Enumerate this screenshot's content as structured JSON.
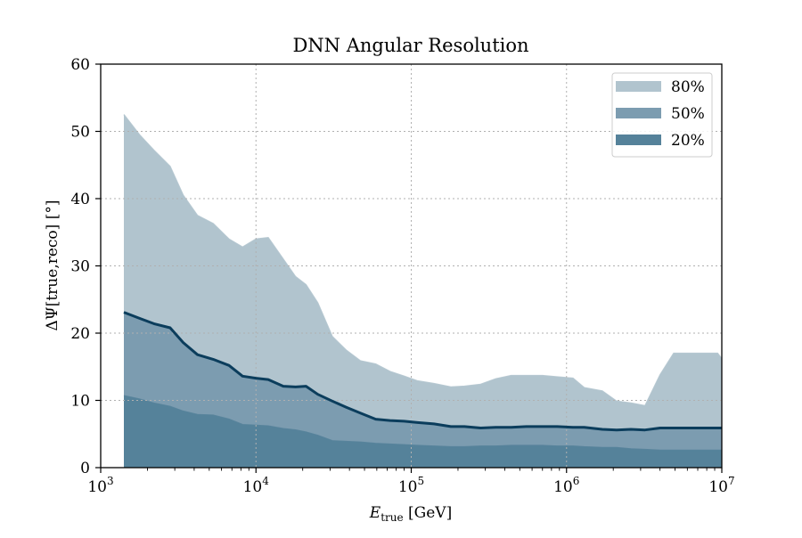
{
  "chart_data": {
    "type": "area",
    "title": "DNN Angular Resolution",
    "xlabel": "E_true [GeV]",
    "xlabel_main": "E",
    "xlabel_sub": "true",
    "xlabel_unit": " [GeV]",
    "ylabel": "ΔΨ[true,reco] [°]",
    "xscale": "log",
    "xlim": [
      1000,
      10000000
    ],
    "ylim": [
      0,
      60
    ],
    "x_ticks": [
      {
        "value": 1000,
        "base": "10",
        "exp": "3"
      },
      {
        "value": 10000,
        "base": "10",
        "exp": "4"
      },
      {
        "value": 100000,
        "base": "10",
        "exp": "5"
      },
      {
        "value": 1000000,
        "base": "10",
        "exp": "6"
      },
      {
        "value": 10000000,
        "base": "10",
        "exp": "7"
      }
    ],
    "y_ticks": [
      {
        "value": 0,
        "label": "0"
      },
      {
        "value": 10,
        "label": "10"
      },
      {
        "value": 20,
        "label": "20"
      },
      {
        "value": 30,
        "label": "30"
      },
      {
        "value": 40,
        "label": "40"
      },
      {
        "value": 50,
        "label": "50"
      },
      {
        "value": 60,
        "label": "60"
      }
    ],
    "grid": true,
    "legend_position": "top-right",
    "x": [
      1410,
      1780,
      2200,
      2800,
      3400,
      4200,
      5300,
      6700,
      8200,
      10000,
      12000,
      15000,
      18000,
      21000,
      25000,
      31000,
      38000,
      47000,
      59000,
      73000,
      90000,
      110000,
      140000,
      180000,
      220000,
      280000,
      350000,
      440000,
      550000,
      700000,
      870000,
      1100000,
      1300000,
      1700000,
      2100000,
      2600000,
      3200000,
      4000000,
      4900000,
      6100000,
      7600000,
      9400000,
      10000000
    ],
    "series": [
      {
        "name": "80%",
        "color": "#b1c4ce",
        "values": [
          52.5,
          49.5,
          47.2,
          44.8,
          40.5,
          37.5,
          36.3,
          34.0,
          32.8,
          34.0,
          34.2,
          31.0,
          28.4,
          27.2,
          24.5,
          19.5,
          17.5,
          15.9,
          15.4,
          14.3,
          13.6,
          12.9,
          12.5,
          12.0,
          12.1,
          12.4,
          13.2,
          13.7,
          13.7,
          13.7,
          13.5,
          13.3,
          11.9,
          11.4,
          9.9,
          9.6,
          9.2,
          13.8,
          17.0,
          17.0,
          17.0,
          17.0,
          16.2
        ]
      },
      {
        "name": "50%",
        "color": "#7c9cb0",
        "values": [
          23.1,
          22.2,
          21.4,
          20.8,
          18.6,
          16.8,
          16.1,
          15.2,
          13.6,
          13.3,
          13.1,
          12.1,
          12.0,
          12.1,
          10.9,
          9.9,
          9.0,
          8.1,
          7.2,
          7.0,
          6.9,
          6.7,
          6.5,
          6.1,
          6.1,
          5.9,
          6.0,
          6.0,
          6.1,
          6.1,
          6.1,
          6.0,
          6.0,
          5.7,
          5.6,
          5.7,
          5.6,
          5.9,
          5.9,
          5.9,
          5.9,
          5.9,
          5.9
        ]
      },
      {
        "name": "20%",
        "color": "#55829a",
        "values": [
          10.7,
          10.2,
          9.6,
          9.1,
          8.4,
          7.9,
          7.8,
          7.2,
          6.4,
          6.3,
          6.2,
          5.8,
          5.6,
          5.3,
          4.8,
          4.0,
          3.9,
          3.8,
          3.6,
          3.5,
          3.4,
          3.3,
          3.2,
          3.1,
          3.1,
          3.2,
          3.2,
          3.3,
          3.3,
          3.3,
          3.2,
          3.2,
          3.1,
          3.0,
          3.0,
          2.8,
          2.7,
          2.6,
          2.6,
          2.6,
          2.6,
          2.6,
          2.6
        ]
      }
    ],
    "median_line_color": "#0b3d5c",
    "median_series": "50%"
  }
}
